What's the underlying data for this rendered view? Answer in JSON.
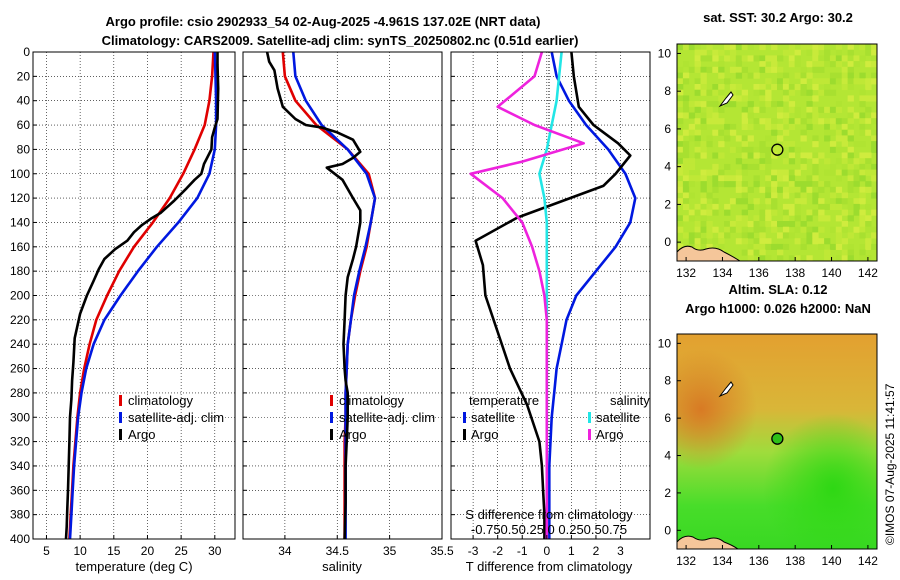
{
  "title_line1": "Argo profile: csio 2902933_54 02-Aug-2025 -4.961S 137.02E (NRT data)",
  "title_line2": "Climatology: CARS2009. Satellite-adj clim: synTS_20250802.nc (0.51d earlier)",
  "watermark": "©IMOS 07-Aug-2025 11:41:57",
  "colors": {
    "climatology": "#e00000",
    "satellite": "#0018e0",
    "argo": "#000000",
    "sal_sat": "#22e6e6",
    "sal_argo": "#ee22dd"
  },
  "chart_data": [
    {
      "type": "line",
      "id": "temperature",
      "xlabel": "temperature (deg C)",
      "ylabel": "",
      "xlim": [
        3,
        33
      ],
      "ylim": [
        400,
        0
      ],
      "xticks": [
        "5",
        "10",
        "15",
        "20",
        "25",
        "30"
      ],
      "xtick_values": [
        5,
        10,
        15,
        20,
        25,
        30
      ],
      "yticks": [
        "0",
        "20",
        "40",
        "60",
        "80",
        "100",
        "120",
        "140",
        "160",
        "180",
        "200",
        "220",
        "240",
        "260",
        "280",
        "300",
        "320",
        "340",
        "360",
        "380",
        "400"
      ],
      "ytick_values": [
        0,
        20,
        40,
        60,
        80,
        100,
        120,
        140,
        160,
        180,
        200,
        220,
        240,
        260,
        280,
        300,
        320,
        340,
        360,
        380,
        400
      ],
      "legend": [
        "climatology",
        "satellite-adj. clim",
        "Argo"
      ],
      "series": [
        {
          "name": "climatology",
          "color_key": "climatology",
          "x": [
            29.8,
            29.6,
            29.2,
            28.5,
            27.0,
            25.3,
            23.3,
            20.8,
            18.0,
            15.8,
            14.0,
            12.4,
            11.4,
            10.6,
            10.0,
            9.6,
            9.3,
            9.0,
            8.8,
            8.6,
            8.4
          ],
          "y": [
            0,
            20,
            40,
            60,
            80,
            100,
            120,
            140,
            160,
            180,
            200,
            220,
            240,
            260,
            280,
            300,
            320,
            340,
            360,
            380,
            400
          ]
        },
        {
          "name": "satellite-adj. clim",
          "color_key": "satellite",
          "x": [
            30.0,
            30.1,
            30.2,
            30.2,
            30.0,
            29.2,
            27.4,
            24.6,
            21.4,
            18.6,
            16.0,
            13.6,
            12.0,
            10.9,
            10.2,
            9.7,
            9.4,
            9.1,
            8.9,
            8.7,
            8.5
          ],
          "y": [
            0,
            20,
            40,
            60,
            80,
            100,
            120,
            140,
            160,
            180,
            200,
            220,
            240,
            260,
            280,
            300,
            320,
            340,
            360,
            380,
            400
          ]
        },
        {
          "name": "Argo",
          "color_key": "argo",
          "x": [
            30.4,
            30.4,
            30.5,
            30.4,
            30.0,
            29.6,
            29.5,
            28.4,
            28.0,
            27.0,
            25.8,
            24.9,
            24.0,
            23.0,
            22.0,
            20.5,
            19.2,
            18.0,
            17.0,
            15.2,
            13.6,
            12.8,
            12.0,
            11.0,
            10.0,
            9.2,
            9.0,
            8.8,
            8.7,
            8.5,
            8.4,
            8.3,
            8.2,
            8.1,
            8.0,
            7.9
          ],
          "y": [
            0,
            10,
            30,
            55,
            62,
            70,
            80,
            92,
            100,
            105,
            112,
            117,
            122,
            127,
            132,
            137,
            142,
            148,
            155,
            162,
            170,
            178,
            188,
            200,
            215,
            235,
            255,
            270,
            285,
            300,
            320,
            340,
            360,
            375,
            390,
            400
          ]
        }
      ]
    },
    {
      "type": "line",
      "id": "salinity",
      "xlabel": "salinity",
      "xlim": [
        33.6,
        35.5
      ],
      "ylim": [
        400,
        0
      ],
      "xticks": [
        "34",
        "34.5",
        "35",
        "35.5"
      ],
      "xtick_values": [
        34,
        34.5,
        35,
        35.5
      ],
      "legend": [
        "climatology",
        "satellite-adj. clim",
        "Argo"
      ],
      "series": [
        {
          "name": "climatology",
          "color_key": "climatology",
          "x": [
            33.98,
            34.0,
            34.1,
            34.3,
            34.6,
            34.8,
            34.86,
            34.82,
            34.78,
            34.72,
            34.67,
            34.63,
            34.6,
            34.59,
            34.58,
            34.58,
            34.57,
            34.57,
            34.57,
            34.57,
            34.57
          ],
          "y": [
            0,
            20,
            40,
            60,
            80,
            100,
            120,
            140,
            160,
            180,
            200,
            220,
            240,
            260,
            280,
            300,
            320,
            340,
            360,
            380,
            400
          ]
        },
        {
          "name": "satellite-adj. clim",
          "color_key": "satellite",
          "x": [
            34.08,
            34.1,
            34.2,
            34.35,
            34.6,
            34.78,
            34.86,
            34.82,
            34.77,
            34.71,
            34.66,
            34.63,
            34.6,
            34.59,
            34.58,
            34.58,
            34.58,
            34.58,
            34.58,
            34.58,
            34.58
          ],
          "y": [
            0,
            20,
            40,
            60,
            80,
            100,
            120,
            140,
            160,
            180,
            200,
            220,
            240,
            260,
            280,
            300,
            320,
            340,
            360,
            380,
            400
          ]
        },
        {
          "name": "Argo",
          "color_key": "argo",
          "x": [
            33.83,
            33.85,
            33.9,
            33.93,
            33.98,
            34.1,
            34.2,
            34.35,
            34.5,
            34.65,
            34.72,
            34.65,
            34.55,
            34.4,
            34.55,
            34.65,
            34.72,
            34.72,
            34.7,
            34.68,
            34.65,
            34.6,
            34.58,
            34.57,
            34.56,
            34.57,
            34.58,
            34.6,
            34.6,
            34.59,
            34.58,
            34.58,
            34.57
          ],
          "y": [
            0,
            8,
            15,
            30,
            45,
            55,
            60,
            62,
            66,
            72,
            82,
            87,
            92,
            95,
            105,
            120,
            130,
            140,
            150,
            160,
            170,
            185,
            200,
            220,
            240,
            260,
            270,
            280,
            300,
            320,
            340,
            370,
            400
          ]
        }
      ]
    },
    {
      "type": "line",
      "id": "difference",
      "xlabel": "T difference from climatology",
      "xlabel2": "S difference from climatology",
      "s_ticks_text": "-0.750.50.25 0 0.250.50.75",
      "xlim": [
        -3.9,
        4.2
      ],
      "ylim": [
        400,
        0
      ],
      "xticks": [
        "-3",
        "-2",
        "-1",
        "0",
        "1",
        "2",
        "3"
      ],
      "xtick_values": [
        -3,
        -2,
        -1,
        0,
        1,
        2,
        3
      ],
      "legend_t_title": "temperature",
      "legend_s_title": "salinity",
      "legend_t": [
        "satellite",
        "Argo"
      ],
      "legend_s": [
        "satellite",
        "Argo"
      ],
      "series": [
        {
          "name": "T satellite",
          "color_key": "satellite",
          "x": [
            0.2,
            0.4,
            0.9,
            1.6,
            2.5,
            3.2,
            3.6,
            3.4,
            2.8,
            2.0,
            1.2,
            0.8,
            0.6,
            0.4,
            0.3,
            0.2,
            0.15,
            0.1,
            0.1,
            0.1,
            0.1
          ],
          "y": [
            0,
            20,
            40,
            60,
            80,
            100,
            120,
            140,
            160,
            180,
            200,
            220,
            240,
            260,
            280,
            300,
            320,
            340,
            360,
            380,
            400
          ]
        },
        {
          "name": "T Argo",
          "color_key": "argo",
          "x": [
            1.0,
            1.1,
            1.3,
            1.9,
            2.9,
            3.4,
            2.8,
            2.3,
            -1.2,
            -2.9,
            -2.6,
            -2.5,
            -2.0,
            -1.5,
            -0.8,
            -0.3,
            -0.2,
            -0.15,
            -0.1,
            -0.1
          ],
          "y": [
            0,
            20,
            45,
            60,
            75,
            85,
            100,
            110,
            136,
            155,
            175,
            200,
            230,
            260,
            290,
            320,
            340,
            360,
            380,
            400
          ]
        },
        {
          "name": "S satellite",
          "color_key": "sal_sat",
          "x": [
            0.6,
            0.5,
            0.4,
            0.2,
            0.0,
            -0.3,
            -0.1,
            0.0,
            0.0,
            0.0,
            0.0,
            0.0,
            0.0,
            0.0,
            0.0,
            0.0,
            0.0,
            0.0,
            0.0,
            0.0,
            0.0
          ],
          "y": [
            0,
            20,
            40,
            60,
            80,
            100,
            120,
            140,
            160,
            180,
            200,
            220,
            240,
            260,
            280,
            300,
            320,
            340,
            360,
            380,
            400
          ]
        },
        {
          "name": "S Argo",
          "color_key": "sal_argo",
          "x": [
            -0.2,
            -0.5,
            -2.0,
            -0.5,
            1.5,
            -1.0,
            -3.1,
            -1.8,
            -1.0,
            -0.6,
            -0.3,
            -0.1,
            0.0,
            0.0,
            0.0,
            0.0,
            0.0,
            0.0,
            0.0,
            0.0
          ],
          "y": [
            0,
            20,
            45,
            60,
            75,
            90,
            100,
            120,
            140,
            160,
            180,
            200,
            220,
            240,
            260,
            280,
            300,
            320,
            360,
            400
          ]
        }
      ]
    },
    {
      "type": "heatmap",
      "id": "sst_map",
      "title": "sat. SST: 30.2 Argo: 30.2",
      "xlim": [
        131.5,
        142.5
      ],
      "ylim": [
        -1,
        10.5
      ],
      "xticks": [
        "132",
        "134",
        "136",
        "138",
        "140",
        "142"
      ],
      "xtick_values": [
        132,
        134,
        136,
        138,
        140,
        142
      ],
      "yticks": [
        "0",
        "2",
        "4",
        "6",
        "8",
        "10"
      ],
      "ytick_values": [
        0,
        2,
        4,
        6,
        8,
        10
      ],
      "marker": {
        "lon": 137.02,
        "lat": 4.9
      }
    },
    {
      "type": "heatmap",
      "id": "sla_map",
      "title": "Altim. SLA: 0.12",
      "subtitle": "Argo h1000: 0.026 h2000: NaN",
      "xlim": [
        131.5,
        142.5
      ],
      "ylim": [
        -1,
        10.5
      ],
      "xticks": [
        "132",
        "134",
        "136",
        "138",
        "140",
        "142"
      ],
      "xtick_values": [
        132,
        134,
        136,
        138,
        140,
        142
      ],
      "yticks": [
        "0",
        "2",
        "4",
        "6",
        "8",
        "10"
      ],
      "ytick_values": [
        0,
        2,
        4,
        6,
        8,
        10
      ],
      "marker": {
        "lon": 137.02,
        "lat": 4.9
      }
    }
  ]
}
